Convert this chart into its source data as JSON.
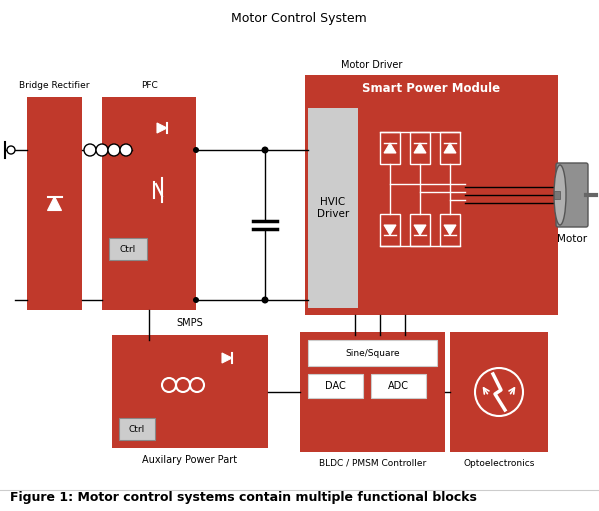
{
  "title": "Motor Control System",
  "figure_caption": "Figure 1: Motor control systems contain multiple functional blocks",
  "bg_color": "#ffffff",
  "red_color": "#c0392b",
  "light_gray": "#cccccc",
  "dark_gray": "#888888",
  "med_gray": "#b0b0b0",
  "white": "#ffffff",
  "black": "#000000",
  "label_bridge": "Bridge Rectifier",
  "label_pfc": "PFC",
  "label_motor_driver": "Motor Driver",
  "label_spm": "Smart Power Module",
  "label_hvic": "HVIC\nDriver",
  "label_motor": "Motor",
  "label_smps": "SMPS",
  "label_aux": "Auxilary Power Part",
  "label_ctrl1": "Ctrl",
  "label_ctrl2": "Ctrl",
  "label_bldc": "BLDC / PMSM Controller",
  "label_sine": "Sine/Square",
  "label_dac": "DAC",
  "label_adc": "ADC",
  "label_opto": "Optoelectronics"
}
